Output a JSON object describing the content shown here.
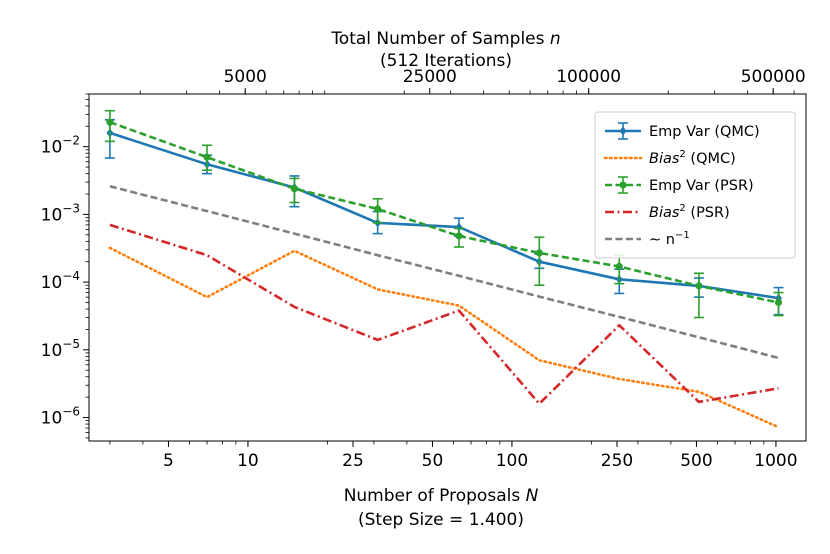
{
  "chart_data": {
    "type": "line",
    "xscale": "log",
    "yscale": "log",
    "xlim": [
      2.5,
      1300
    ],
    "ylim": [
      4.5e-07,
      0.06
    ],
    "xlabel": {
      "prefix": "Number of Proposals ",
      "var": "N"
    },
    "xlabel2": "(Step Size = 1.400)",
    "top_xlabel": {
      "prefix": "Total Number of Samples ",
      "var": "n"
    },
    "top_xlabel2": "(512 Iterations)",
    "x_ticks": [
      {
        "value": 5,
        "label": "5"
      },
      {
        "value": 10,
        "label": "10"
      },
      {
        "value": 25,
        "label": "25"
      },
      {
        "value": 50,
        "label": "50"
      },
      {
        "value": 100,
        "label": "100"
      },
      {
        "value": 250,
        "label": "250"
      },
      {
        "value": 500,
        "label": "500"
      },
      {
        "value": 1000,
        "label": "1000"
      }
    ],
    "top_ticks": [
      {
        "value": 5000,
        "label": "5000"
      },
      {
        "value": 25000,
        "label": "25000"
      },
      {
        "value": 100000,
        "label": "100000"
      },
      {
        "value": 500000,
        "label": "500000"
      }
    ],
    "top_samples_per_proposal": 512,
    "y_ticks": [
      {
        "value": 0.01,
        "exp": "-2"
      },
      {
        "value": 0.001,
        "exp": "-3"
      },
      {
        "value": 0.0001,
        "exp": "-4"
      },
      {
        "value": 1e-05,
        "exp": "-5"
      },
      {
        "value": 1e-06,
        "exp": "-6"
      }
    ],
    "x": [
      3,
      7,
      15,
      31,
      63,
      127,
      255,
      511,
      1023
    ],
    "series": [
      {
        "name": "Emp Var (QMC)",
        "legend": "Emp Var (QMC)",
        "color": "#1f77b4",
        "style": "solid",
        "marker": "diamond",
        "values": [
          0.016,
          0.0055,
          0.0025,
          0.00075,
          0.00065,
          0.0002,
          0.00011,
          8.8e-05,
          5.8e-05
        ],
        "err_low": [
          0.0068,
          0.004,
          0.0013,
          0.00052,
          0.00048,
          0.00016,
          6.8e-05,
          6e-05,
          3.3e-05
        ],
        "err_high": [
          0.025,
          0.0075,
          0.0037,
          0.0011,
          0.00088,
          0.00026,
          0.000155,
          0.000115,
          8.3e-05
        ]
      },
      {
        "name": "Bias^2 (QMC)",
        "legend_var": "Bias",
        "legend_rest": " (QMC)",
        "color": "#ff7f0e",
        "style": "dotted",
        "values": [
          0.00032,
          6e-05,
          0.00029,
          7.8e-05,
          4.5e-05,
          7e-06,
          3.7e-06,
          2.4e-06,
          7.2e-07
        ]
      },
      {
        "name": "Emp Var (PSR)",
        "legend": "Emp Var (PSR)",
        "color": "#2ca02c",
        "style": "dashed",
        "marker": "circle",
        "values": [
          0.023,
          0.007,
          0.0024,
          0.0012,
          0.00048,
          0.00027,
          0.00017,
          8.8e-05,
          5e-05
        ],
        "err_low": [
          0.012,
          0.0045,
          0.0015,
          0.00075,
          0.00033,
          9e-05,
          9.5e-05,
          3e-05,
          3.2e-05
        ],
        "err_high": [
          0.034,
          0.0105,
          0.0034,
          0.0017,
          0.00062,
          0.00046,
          0.00025,
          0.000135,
          7e-05
        ]
      },
      {
        "name": "Bias^2 (PSR)",
        "legend_var": "Bias",
        "legend_rest": " (PSR)",
        "color": "#d62728",
        "style": "dashdot",
        "values": [
          0.0007,
          0.00025,
          4.3e-05,
          1.4e-05,
          3.8e-05,
          1.6e-06,
          2.3e-05,
          1.7e-06,
          2.7e-06
        ]
      },
      {
        "name": "~ n^-1",
        "legend_math": "∼ n",
        "legend_sup": "−1",
        "color": "#7f7f7f",
        "style": "dashed",
        "values": [
          0.0026,
          0.00112,
          0.00052,
          0.00025,
          0.000124,
          6.1e-05,
          3.06e-05,
          1.53e-05,
          7.6e-06
        ]
      }
    ],
    "legend_position": "top-right"
  }
}
